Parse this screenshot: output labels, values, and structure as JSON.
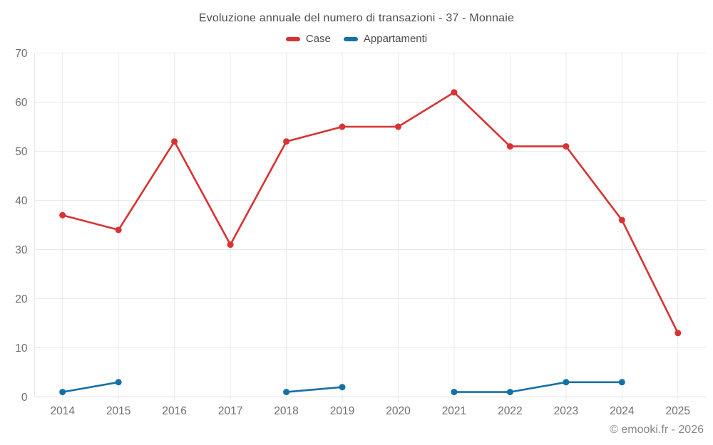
{
  "header": {
    "title": "Evoluzione annuale del numero di transazioni - 37 - Monnaie"
  },
  "legend": {
    "items": [
      {
        "label": "Case",
        "color": "#d93232"
      },
      {
        "label": "Appartamenti",
        "color": "#1570a6"
      }
    ]
  },
  "footer": {
    "copyright": "© emooki.fr - 2026"
  },
  "chart_data": {
    "type": "line",
    "title": "Evoluzione annuale del numero di transazioni - 37 - Monnaie",
    "categories": [
      "2014",
      "2015",
      "2016",
      "2017",
      "2018",
      "2019",
      "2020",
      "2021",
      "2022",
      "2023",
      "2024",
      "2025"
    ],
    "series": [
      {
        "name": "Case",
        "color": "#d93232",
        "values": [
          37,
          34,
          52,
          31,
          52,
          55,
          55,
          62,
          51,
          51,
          36,
          13
        ]
      },
      {
        "name": "Appartamenti",
        "color": "#1570a6",
        "values": [
          1,
          3,
          null,
          null,
          1,
          2,
          null,
          1,
          1,
          3,
          3,
          null
        ]
      }
    ],
    "xlabel": "",
    "ylabel": "",
    "ylim": [
      0,
      70
    ],
    "ytick_step": 10,
    "grid": true,
    "legend_position": "top",
    "colors": {
      "grid": "#e9e9e9",
      "axis_line": "#dddddd",
      "axis_labels": "#6f6f6f",
      "title_text": "#4d4d4d",
      "footer_text": "#878787",
      "background": "#ffffff"
    }
  }
}
